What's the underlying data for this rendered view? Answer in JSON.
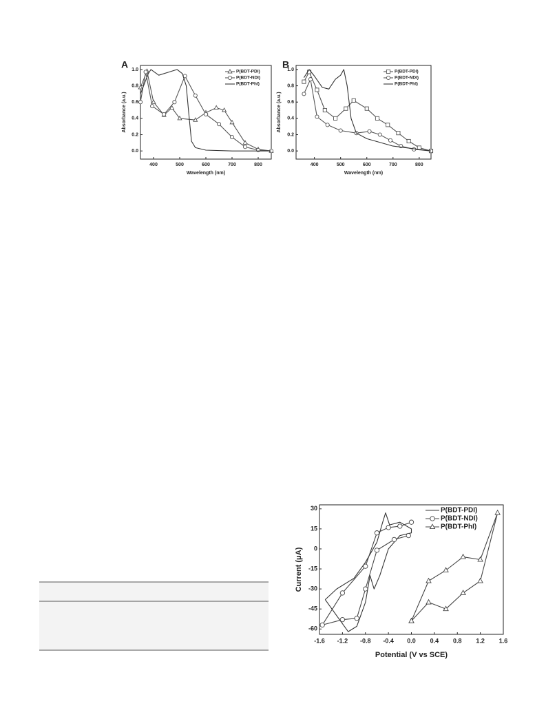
{
  "chart_data": [
    {
      "type": "line",
      "panel_label": "A",
      "x_label": "Wavelength (nm)",
      "y_label": "Absorbance (a.u.)",
      "xlim": [
        350,
        850
      ],
      "xticks": [
        400,
        500,
        600,
        700,
        800
      ],
      "ylim": [
        -0.1,
        1.05
      ],
      "yticks": [
        {
          "value": 0,
          "label": "0.0"
        },
        0.2,
        0.4,
        0.6,
        0.8,
        {
          "value": 1,
          "label": "1.0"
        }
      ],
      "series": [
        {
          "name": "P(BDT-PDI)",
          "color": "#555555",
          "marker": "triangle",
          "x": [
            350,
            375,
            400,
            440,
            470,
            500,
            560,
            600,
            640,
            670,
            700,
            750,
            800,
            850
          ],
          "values": [
            0.78,
            0.98,
            0.6,
            0.44,
            0.53,
            0.4,
            0.38,
            0.47,
            0.53,
            0.5,
            0.35,
            0.1,
            0.02,
            0.0
          ]
        },
        {
          "name": "P(BDT-NDI)",
          "color": "#555555",
          "marker": "circle",
          "x": [
            350,
            370,
            395,
            440,
            480,
            520,
            560,
            600,
            650,
            700,
            750,
            800,
            850
          ],
          "values": [
            0.6,
            0.97,
            0.55,
            0.45,
            0.6,
            0.92,
            0.68,
            0.45,
            0.33,
            0.17,
            0.05,
            0.01,
            0.0
          ]
        },
        {
          "name": "P(BDT-PhI)",
          "color": "#333333",
          "marker": null,
          "x": [
            350,
            380,
            390,
            420,
            460,
            490,
            510,
            525,
            535,
            545,
            560,
            600,
            700,
            850
          ],
          "values": [
            0.7,
            0.95,
            1.0,
            0.93,
            0.97,
            1.0,
            0.95,
            0.8,
            0.45,
            0.12,
            0.04,
            0.01,
            0.0,
            0.0
          ]
        }
      ]
    },
    {
      "type": "line",
      "panel_label": "B",
      "x_label": "Wavelength (nm)",
      "y_label": "Absorbance (a.u.)",
      "xlim": [
        330,
        845
      ],
      "xticks": [
        400,
        500,
        600,
        700,
        800
      ],
      "ylim": [
        -0.1,
        1.05
      ],
      "yticks": [
        {
          "value": 0,
          "label": "0.0"
        },
        0.2,
        0.4,
        0.6,
        0.8,
        {
          "value": 1,
          "label": "1.0"
        }
      ],
      "series": [
        {
          "name": "P(BDT-PDI)",
          "color": "#555555",
          "marker": "square",
          "x": [
            360,
            380,
            410,
            440,
            480,
            520,
            550,
            600,
            640,
            680,
            720,
            760,
            800,
            845
          ],
          "values": [
            0.85,
            0.97,
            0.75,
            0.5,
            0.4,
            0.52,
            0.62,
            0.52,
            0.4,
            0.32,
            0.22,
            0.12,
            0.04,
            0.0
          ]
        },
        {
          "name": "P(BDT-NDI)",
          "color": "#555555",
          "marker": "circle",
          "x": [
            360,
            385,
            410,
            450,
            500,
            560,
            610,
            650,
            690,
            730,
            780,
            845
          ],
          "values": [
            0.7,
            0.88,
            0.42,
            0.32,
            0.25,
            0.22,
            0.24,
            0.2,
            0.13,
            0.06,
            0.02,
            0.0
          ]
        },
        {
          "name": "P(BDT-PhI)",
          "color": "#333333",
          "marker": null,
          "x": [
            360,
            380,
            400,
            430,
            455,
            480,
            500,
            512,
            525,
            540,
            560,
            600,
            700,
            845
          ],
          "values": [
            0.9,
            1.0,
            0.92,
            0.78,
            0.76,
            0.88,
            0.93,
            1.0,
            0.8,
            0.4,
            0.22,
            0.15,
            0.06,
            0.0
          ]
        }
      ]
    },
    {
      "type": "line",
      "x_label": "Potential (V vs SCE)",
      "y_label": "Current (μA)",
      "xlim": [
        -1.6,
        1.6
      ],
      "xticks": [
        -1.6,
        -1.2,
        -0.8,
        -0.4,
        {
          "value": 0,
          "label": "0.0"
        },
        0.4,
        0.8,
        1.2,
        1.6
      ],
      "ylim": [
        -64,
        33
      ],
      "yticks": [
        -60,
        -45,
        -30,
        -15,
        0,
        15,
        30
      ],
      "series": [
        {
          "name": "P(BDT-PDI)",
          "color": "#333333",
          "marker": null,
          "x": [
            -1.5,
            -1.3,
            -1.0,
            -0.8,
            -0.6,
            -0.5,
            -0.45,
            -0.38,
            -0.2,
            0.0,
            0.0,
            -0.2,
            -0.4,
            -0.55,
            -0.65,
            -0.72,
            -0.8,
            -0.95,
            -1.1,
            -1.3,
            -1.5
          ],
          "values": [
            -38,
            -30,
            -22,
            -10,
            5,
            20,
            27,
            18,
            20,
            15,
            12,
            10,
            0,
            -20,
            -30,
            -20,
            -40,
            -58,
            -62,
            -50,
            -38
          ]
        },
        {
          "name": "P(BDT-NDI)",
          "color": "#444444",
          "marker": "circle",
          "x": [
            0.0,
            -0.2,
            -0.4,
            -0.6,
            -0.8,
            -1.2,
            -1.55,
            -1.2,
            -0.95,
            -0.8,
            -0.6,
            -0.3,
            -0.05
          ],
          "values": [
            20,
            17,
            16,
            12,
            -13,
            -33,
            -57,
            -53,
            -52,
            -30,
            -1,
            7,
            10
          ]
        },
        {
          "name": "P(BDT-PhI)",
          "color": "#444444",
          "marker": "triangle",
          "x": [
            0.0,
            0.3,
            0.6,
            0.9,
            1.2,
            1.5,
            1.2,
            0.9,
            0.6,
            0.3,
            0.0
          ],
          "values": [
            -54,
            -24,
            -16,
            -6,
            -8,
            27,
            -24,
            -33,
            -45,
            -40,
            -54
          ]
        }
      ]
    }
  ]
}
